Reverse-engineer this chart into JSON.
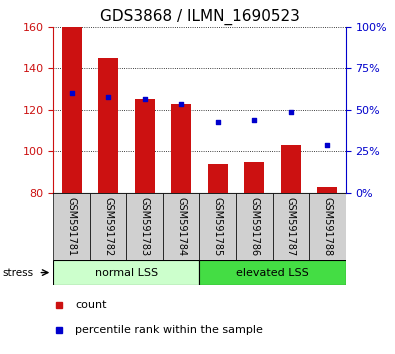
{
  "title": "GDS3868 / ILMN_1690523",
  "categories": [
    "GSM591781",
    "GSM591782",
    "GSM591783",
    "GSM591784",
    "GSM591785",
    "GSM591786",
    "GSM591787",
    "GSM591788"
  ],
  "bar_values": [
    160,
    145,
    125,
    123,
    94,
    95,
    103,
    83
  ],
  "bar_bottom": 80,
  "blue_values": [
    128,
    126,
    125,
    123,
    114,
    115,
    119,
    103
  ],
  "ylim": [
    80,
    160
  ],
  "y2lim": [
    0,
    100
  ],
  "y_ticks": [
    80,
    100,
    120,
    140,
    160
  ],
  "y2_ticks": [
    0,
    25,
    50,
    75,
    100
  ],
  "bar_color": "#cc1111",
  "blue_color": "#0000cc",
  "group1_label": "normal LSS",
  "group2_label": "elevated LSS",
  "group1_bg": "#ccffcc",
  "group2_bg": "#44dd44",
  "xlabel_area_bg": "#d0d0d0",
  "legend_count": "count",
  "legend_percentile": "percentile rank within the sample",
  "stress_label": "stress",
  "title_fontsize": 11,
  "tick_fontsize": 8,
  "label_fontsize": 8,
  "xtick_fontsize": 7
}
